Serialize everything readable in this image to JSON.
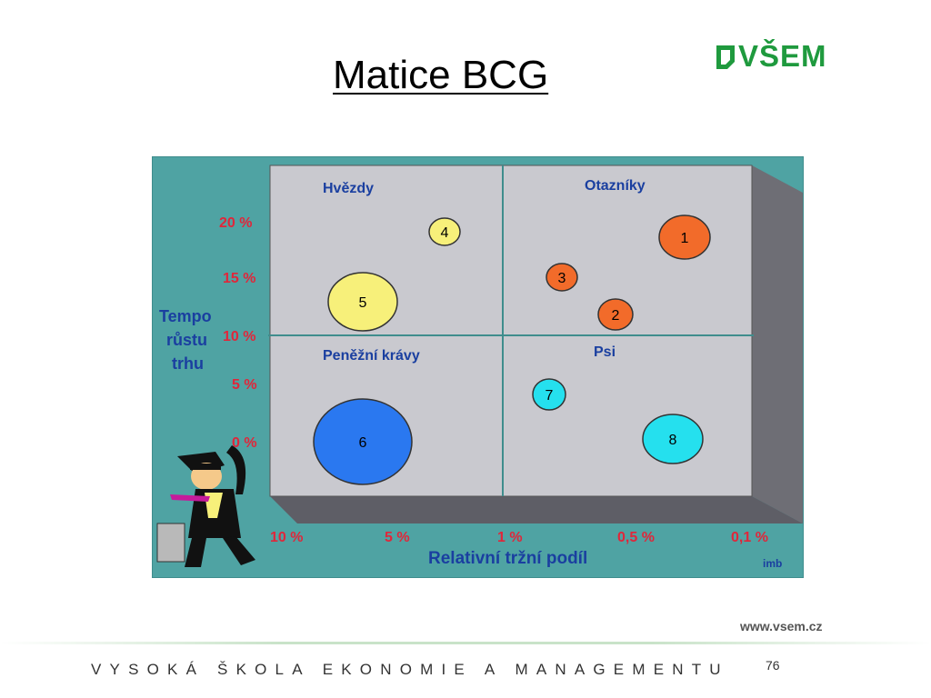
{
  "slide": {
    "title": "Matice BCG",
    "logo": "VŠEM",
    "website": "www.vsem.cz",
    "footer": "VYSOKÁ ŠKOLA EKONOMIE A MANAGEMENTU",
    "page_number": "76"
  },
  "diagram": {
    "quadrants": {
      "top_left": "Hvězdy",
      "top_right": "Otazníky",
      "bottom_left": "Peněžní krávy",
      "bottom_right": "Psi"
    },
    "y_axis": {
      "label_line1": "Tempo",
      "label_line2": "růstu",
      "label_line3": "trhu",
      "ticks": [
        "20 %",
        "15 %",
        "10 %",
        "5 %",
        "0 %"
      ]
    },
    "x_axis": {
      "label": "Relativní tržní podíl",
      "ticks": [
        "10 %",
        "5 %",
        "1 %",
        "0,5 %",
        "0,1 %"
      ]
    },
    "bubbles": [
      {
        "label": "1",
        "color": "#f26b2a"
      },
      {
        "label": "2",
        "color": "#f26b2a"
      },
      {
        "label": "3",
        "color": "#f26b2a"
      },
      {
        "label": "4",
        "color": "#f7f07a"
      },
      {
        "label": "5",
        "color": "#f7f07a"
      },
      {
        "label": "6",
        "color": "#2a78f0"
      },
      {
        "label": "7",
        "color": "#25e0ee"
      },
      {
        "label": "8",
        "color": "#25e0ee"
      }
    ],
    "watermark": "imb",
    "colors": {
      "background": "#4fa3a3",
      "panel": "#c9c9cf",
      "label_blue": "#1a3fa0",
      "label_red": "#e0263a"
    }
  }
}
